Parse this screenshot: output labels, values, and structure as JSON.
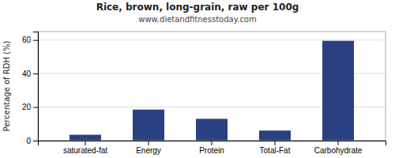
{
  "chart_data": {
    "type": "bar",
    "title": "Rice, brown, long-grain, raw per 100g",
    "subtitle": "www.dietandfitnesstoday.com",
    "ylabel": "Percentage of RDH (%)",
    "categories": [
      "saturated-fat",
      "Energy",
      "Protein",
      "Total-Fat",
      "Carbohydrate"
    ],
    "values": [
      3.5,
      18.5,
      13.0,
      6.0,
      59.5
    ],
    "color": "#2b4080",
    "ylim": [
      0,
      65
    ],
    "yticks": [
      0,
      20,
      40,
      60
    ],
    "grid": true
  }
}
